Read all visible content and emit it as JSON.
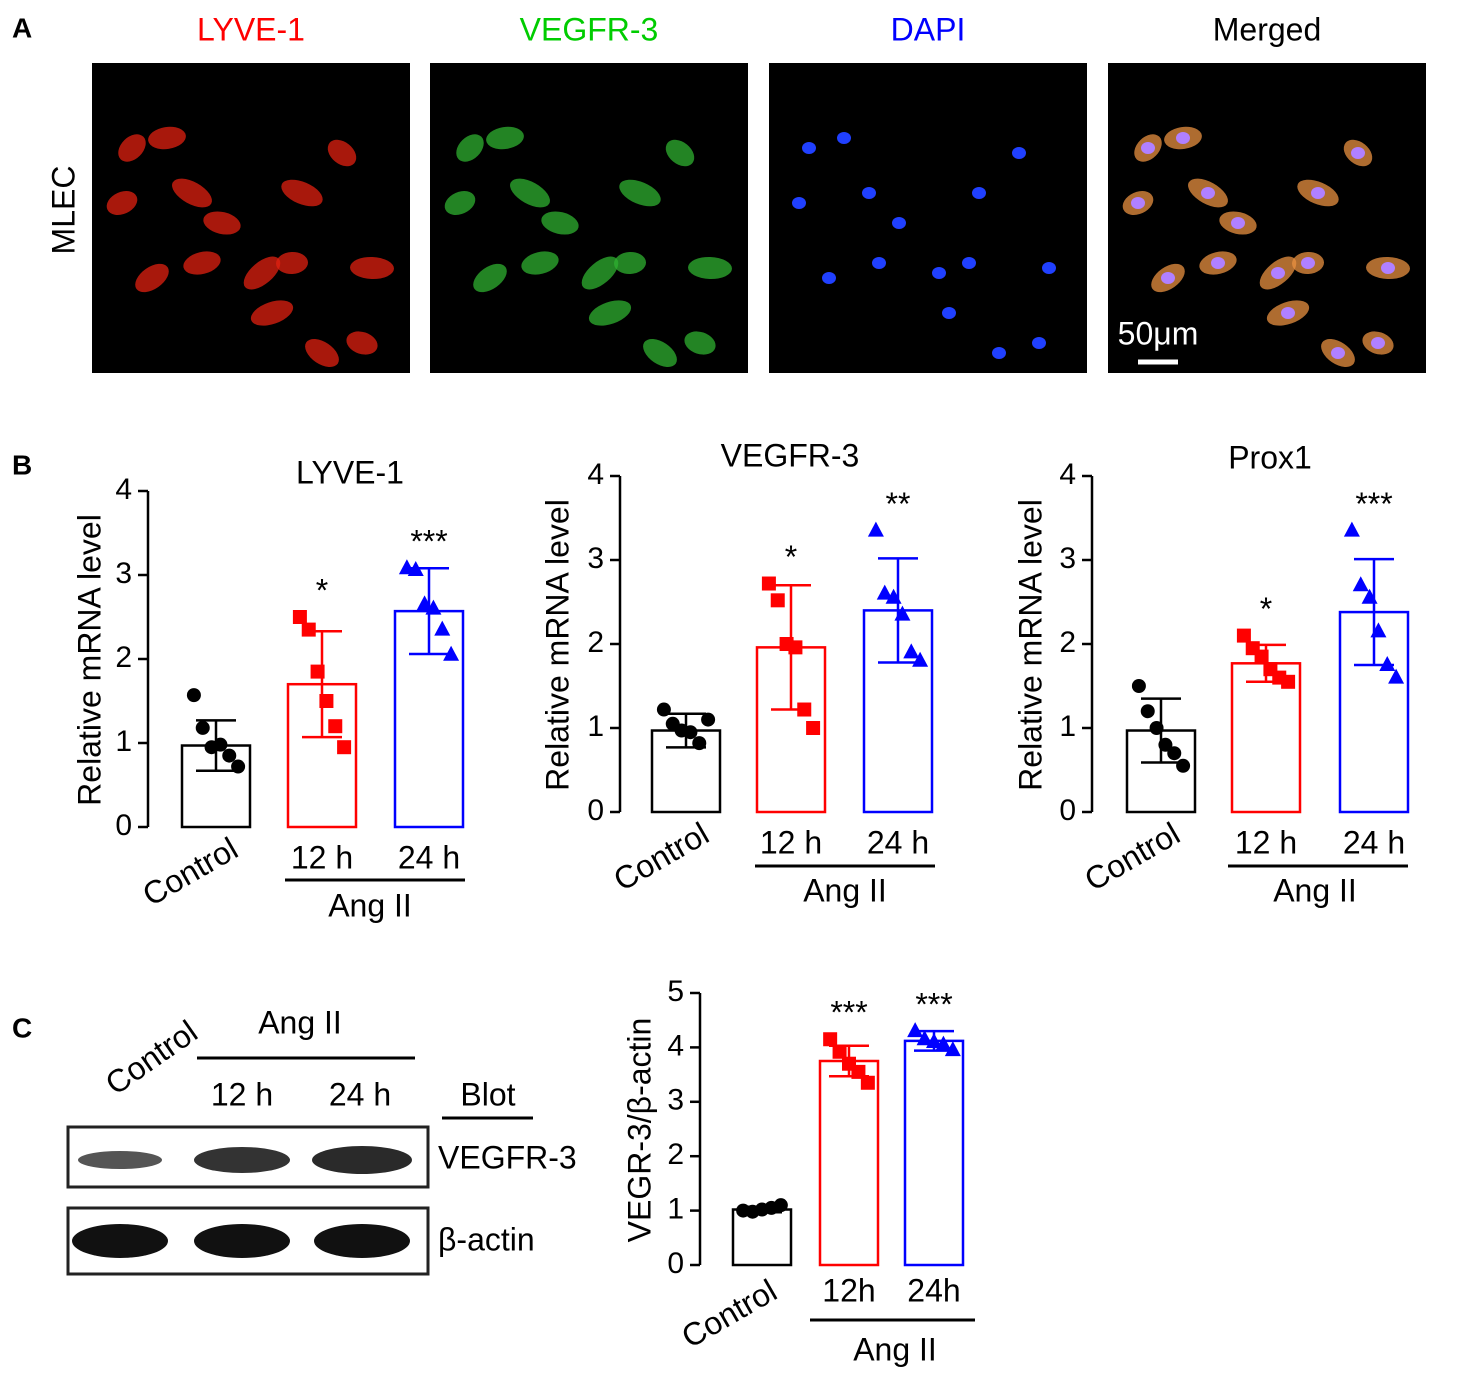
{
  "panels": [
    "A",
    "B",
    "C"
  ],
  "images": {
    "labels": [
      "LYVE-1",
      "VEGFR-3",
      "DAPI",
      "Merged"
    ],
    "label_colors": [
      "#ff0000",
      "#00cc00",
      "#0000ff",
      "#000000"
    ],
    "row_label": "MLEC",
    "scale_bar": "50μm"
  },
  "blot": {
    "group": "Ang II",
    "lanes": [
      "Control",
      "12 h",
      "24 h"
    ],
    "header": "Blot",
    "rows": [
      "VEGFR-3",
      "β-actin"
    ]
  },
  "chart_data": [
    {
      "type": "bar",
      "title": "LYVE-1",
      "ylabel": "Relative mRNA level",
      "categories": [
        "Control",
        "12 h",
        "24 h"
      ],
      "group_label": "Ang II",
      "values": [
        0.97,
        1.7,
        2.57
      ],
      "errors": [
        0.3,
        0.63,
        0.51
      ],
      "points": [
        [
          1.57,
          1.18,
          0.95,
          0.98,
          0.85,
          0.72
        ],
        [
          2.5,
          2.35,
          1.85,
          1.5,
          1.2,
          0.95
        ],
        [
          3.08,
          3.06,
          2.65,
          2.6,
          2.35,
          2.05
        ]
      ],
      "annotations": [
        null,
        "*",
        "***"
      ],
      "colors": [
        "#000000",
        "#ff0000",
        "#0000ff"
      ],
      "markers": [
        "circle",
        "square",
        "triangle"
      ],
      "ylim": [
        0,
        4
      ],
      "yticks": [
        0,
        1,
        2,
        3,
        4
      ]
    },
    {
      "type": "bar",
      "title": "VEGFR-3",
      "ylabel": "Relative mRNA level",
      "categories": [
        "Control",
        "12 h",
        "24 h"
      ],
      "group_label": "Ang II",
      "values": [
        0.97,
        1.96,
        2.4
      ],
      "errors": [
        0.2,
        0.74,
        0.62
      ],
      "points": [
        [
          1.22,
          1.05,
          0.97,
          0.95,
          0.82,
          1.1
        ],
        [
          2.72,
          2.52,
          2.0,
          1.96,
          1.22,
          1.0
        ],
        [
          3.35,
          2.6,
          2.55,
          2.35,
          1.9,
          1.8
        ]
      ],
      "annotations": [
        null,
        "*",
        "**"
      ],
      "colors": [
        "#000000",
        "#ff0000",
        "#0000ff"
      ],
      "markers": [
        "circle",
        "square",
        "triangle"
      ],
      "ylim": [
        0,
        4
      ],
      "yticks": [
        0,
        1,
        2,
        3,
        4
      ]
    },
    {
      "type": "bar",
      "title": "Prox1",
      "ylabel": "Relative mRNA level",
      "categories": [
        "Control",
        "12 h",
        "24 h"
      ],
      "group_label": "Ang II",
      "values": [
        0.97,
        1.77,
        2.38
      ],
      "errors": [
        0.38,
        0.22,
        0.63
      ],
      "points": [
        [
          1.5,
          1.2,
          1.0,
          0.8,
          0.7,
          0.55
        ],
        [
          2.1,
          1.95,
          1.85,
          1.7,
          1.6,
          1.55
        ],
        [
          3.35,
          2.7,
          2.55,
          2.15,
          1.75,
          1.6
        ]
      ],
      "annotations": [
        null,
        "*",
        "***"
      ],
      "colors": [
        "#000000",
        "#ff0000",
        "#0000ff"
      ],
      "markers": [
        "circle",
        "square",
        "triangle"
      ],
      "ylim": [
        0,
        4
      ],
      "yticks": [
        0,
        1,
        2,
        3,
        4
      ]
    },
    {
      "type": "bar",
      "ylabel": "VEGR-3/β-actin",
      "categories": [
        "Control",
        "12h",
        "24h"
      ],
      "group_label": "Ang II",
      "values": [
        1.02,
        3.75,
        4.12
      ],
      "errors": [
        0.05,
        0.28,
        0.18
      ],
      "points": [
        [
          1.0,
          0.98,
          1.02,
          1.05,
          1.1
        ],
        [
          4.15,
          3.92,
          3.7,
          3.55,
          3.35
        ],
        [
          4.3,
          4.15,
          4.1,
          4.05,
          3.95
        ]
      ],
      "annotations": [
        null,
        "***",
        "***"
      ],
      "colors": [
        "#000000",
        "#ff0000",
        "#0000ff"
      ],
      "markers": [
        "circle",
        "square",
        "triangle"
      ],
      "ylim": [
        0,
        5
      ],
      "yticks": [
        0,
        1,
        2,
        3,
        4,
        5
      ]
    }
  ]
}
